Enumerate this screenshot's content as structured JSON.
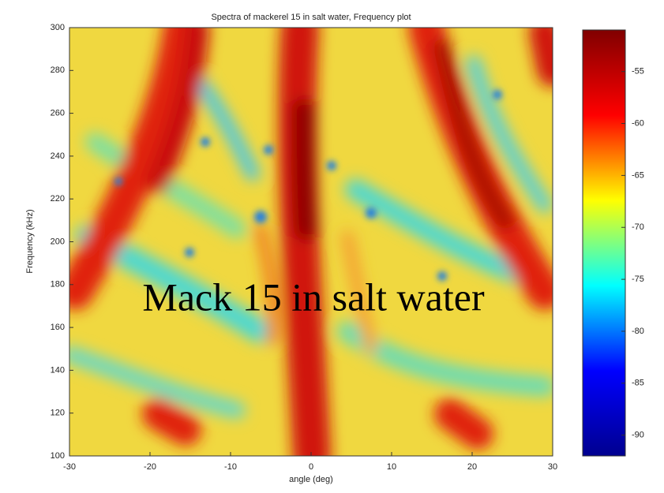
{
  "chart_data": {
    "type": "heatmap",
    "title": "Spectra of mackerel 15 in salt water, Frequency plot",
    "xlabel": "angle (deg)",
    "ylabel": "Frequency (kHz)",
    "xlim": [
      -30,
      30
    ],
    "xticks": [
      -30,
      -20,
      -10,
      0,
      10,
      20,
      30
    ],
    "ylim": [
      100,
      300
    ],
    "yticks": [
      100,
      120,
      140,
      160,
      180,
      200,
      220,
      240,
      260,
      280,
      300
    ],
    "colorbar": {
      "clim": [
        -92,
        -51
      ],
      "ticks": [
        -90,
        -85,
        -80,
        -75,
        -70,
        -65,
        -60,
        -55
      ],
      "colormap": [
        "#00008f",
        "#0000ff",
        "#00ffff",
        "#ffff00",
        "#ff0000",
        "#800000"
      ]
    },
    "annotation": "Mack 15 in salt water"
  }
}
